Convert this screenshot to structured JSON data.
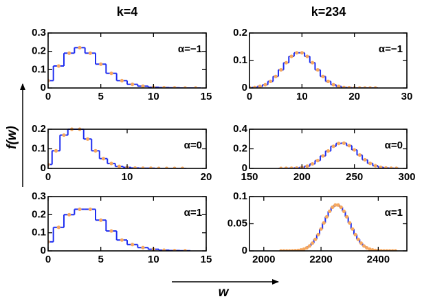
{
  "column_titles": [
    "k=4",
    "k=234"
  ],
  "ylabel": "f(w)",
  "xlabel": "w",
  "chart_data": [
    {
      "type": "step",
      "annotation": "α=−1",
      "xlim": [
        0,
        15
      ],
      "xticks": [
        0,
        5,
        10,
        15
      ],
      "ylim": [
        0,
        0.3
      ],
      "yticks": [
        0,
        0.1,
        0.2,
        0.3
      ],
      "x": [
        0,
        1,
        2,
        3,
        4,
        5,
        6,
        7,
        8,
        9,
        10,
        11,
        12,
        13,
        14
      ],
      "series": [
        {
          "style": "step",
          "color": "#1f2ef0",
          "values": [
            0.04,
            0.12,
            0.19,
            0.22,
            0.19,
            0.13,
            0.08,
            0.04,
            0.02,
            0.01,
            0.004,
            0.002,
            0.001,
            0,
            0
          ]
        },
        {
          "style": "dots",
          "color": "#f5a860",
          "values": [
            0.04,
            0.12,
            0.19,
            0.22,
            0.19,
            0.13,
            0.08,
            0.04,
            0.02,
            0.01,
            0.004,
            0.002,
            0.001,
            0,
            0
          ]
        }
      ]
    },
    {
      "type": "step",
      "annotation": "α=−1",
      "xlim": [
        0,
        30
      ],
      "xticks": [
        0,
        10,
        20,
        30
      ],
      "ylim": [
        0,
        0.2
      ],
      "yticks": [
        0,
        0.1,
        0.2
      ],
      "x": [
        0,
        1,
        2,
        3,
        4,
        5,
        6,
        7,
        8,
        9,
        10,
        11,
        12,
        13,
        14,
        15,
        16,
        17,
        18,
        19,
        20,
        21,
        22,
        23,
        24
      ],
      "series": [
        {
          "style": "step",
          "color": "#1f2ef0",
          "values": [
            0.001,
            0.002,
            0.006,
            0.012,
            0.024,
            0.042,
            0.066,
            0.092,
            0.115,
            0.128,
            0.128,
            0.115,
            0.092,
            0.066,
            0.042,
            0.024,
            0.012,
            0.006,
            0.002,
            0.001,
            0,
            0,
            0,
            0,
            0
          ]
        },
        {
          "style": "dots",
          "color": "#f5a860",
          "values": [
            0.001,
            0.002,
            0.006,
            0.012,
            0.024,
            0.042,
            0.066,
            0.092,
            0.115,
            0.128,
            0.128,
            0.115,
            0.092,
            0.066,
            0.042,
            0.024,
            0.012,
            0.006,
            0.002,
            0.001,
            0,
            0,
            0,
            0,
            0
          ]
        }
      ]
    },
    {
      "type": "step",
      "annotation": "α=0",
      "xlim": [
        0,
        20
      ],
      "xticks": [
        0,
        10,
        20
      ],
      "ylim": [
        0,
        0.2
      ],
      "yticks": [
        0,
        0.1,
        0.2
      ],
      "x": [
        0,
        1,
        2,
        3,
        4,
        5,
        6,
        7,
        8,
        9,
        10,
        11,
        12,
        13,
        14,
        15,
        16,
        17
      ],
      "series": [
        {
          "style": "step",
          "color": "#1f2ef0",
          "values": [
            0.02,
            0.09,
            0.17,
            0.2,
            0.2,
            0.15,
            0.09,
            0.05,
            0.025,
            0.01,
            0.005,
            0.002,
            0.001,
            0.001,
            0,
            0,
            0,
            0
          ]
        },
        {
          "style": "dots",
          "color": "#f5a860",
          "values": [
            0.02,
            0.09,
            0.17,
            0.2,
            0.2,
            0.15,
            0.09,
            0.05,
            0.025,
            0.01,
            0.005,
            0.002,
            0.001,
            0.001,
            0,
            0,
            0,
            0
          ]
        }
      ]
    },
    {
      "type": "step",
      "annotation": "α=0",
      "xlim": [
        150,
        300
      ],
      "xticks": [
        150,
        200,
        250,
        300
      ],
      "ylim": [
        0,
        0.4
      ],
      "yticks": [
        0,
        0.2,
        0.4
      ],
      "x": [
        180,
        185,
        190,
        195,
        200,
        205,
        210,
        215,
        220,
        225,
        230,
        235,
        240,
        245,
        250,
        255,
        260,
        265,
        270,
        275,
        280,
        285,
        290
      ],
      "series": [
        {
          "style": "step",
          "color": "#1f2ef0",
          "values": [
            0,
            0.001,
            0.002,
            0.004,
            0.01,
            0.023,
            0.046,
            0.08,
            0.127,
            0.178,
            0.226,
            0.255,
            0.258,
            0.233,
            0.189,
            0.137,
            0.088,
            0.051,
            0.027,
            0.012,
            0.005,
            0.002,
            0.001
          ]
        },
        {
          "style": "dots",
          "color": "#f5a860",
          "values": [
            0,
            0.001,
            0.002,
            0.004,
            0.01,
            0.023,
            0.046,
            0.08,
            0.127,
            0.178,
            0.226,
            0.255,
            0.258,
            0.233,
            0.189,
            0.137,
            0.088,
            0.051,
            0.027,
            0.012,
            0.005,
            0.002,
            0.001
          ]
        }
      ]
    },
    {
      "type": "step",
      "annotation": "α=1",
      "xlim": [
        0,
        15
      ],
      "xticks": [
        0,
        5,
        10,
        15
      ],
      "ylim": [
        0,
        0.3
      ],
      "yticks": [
        0,
        0.1,
        0.2,
        0.3
      ],
      "x": [
        0,
        1,
        2,
        3,
        4,
        5,
        6,
        7,
        8,
        9,
        10,
        11,
        12,
        13
      ],
      "series": [
        {
          "style": "step",
          "color": "#1f2ef0",
          "values": [
            0.05,
            0.13,
            0.2,
            0.23,
            0.23,
            0.17,
            0.11,
            0.06,
            0.035,
            0.018,
            0.009,
            0.004,
            0.002,
            0.001
          ]
        },
        {
          "style": "dots",
          "color": "#f5a860",
          "values": [
            0.05,
            0.13,
            0.2,
            0.23,
            0.23,
            0.17,
            0.11,
            0.06,
            0.035,
            0.018,
            0.009,
            0.004,
            0.002,
            0.001
          ]
        }
      ]
    },
    {
      "type": "step",
      "annotation": "α=1",
      "xlim": [
        1950,
        2500
      ],
      "xticks": [
        2000,
        2200,
        2400
      ],
      "ylim": [
        0,
        0.1
      ],
      "yticks": [
        0,
        0.05,
        0.1
      ],
      "x": [
        2060,
        2070,
        2080,
        2090,
        2100,
        2110,
        2120,
        2130,
        2140,
        2150,
        2160,
        2170,
        2180,
        2190,
        2200,
        2210,
        2220,
        2230,
        2240,
        2250,
        2260,
        2270,
        2280,
        2290,
        2300,
        2310,
        2320,
        2330,
        2340,
        2350,
        2360,
        2370,
        2380,
        2390,
        2400,
        2410,
        2420,
        2430,
        2440,
        2450,
        2460
      ],
      "series": [
        {
          "style": "step",
          "color": "#1f2ef0",
          "values": [
            0,
            0,
            0,
            0.0001,
            0.0002,
            0.0005,
            0.0009,
            0.0018,
            0.0032,
            0.0056,
            0.0091,
            0.0143,
            0.0212,
            0.03,
            0.0403,
            0.0516,
            0.0628,
            0.0729,
            0.0804,
            0.0845,
            0.0845,
            0.0804,
            0.0729,
            0.0628,
            0.0516,
            0.0403,
            0.03,
            0.0212,
            0.0143,
            0.0091,
            0.0056,
            0.0032,
            0.0018,
            0.0009,
            0.0005,
            0.0002,
            0.0001,
            0,
            0,
            0,
            0
          ]
        },
        {
          "style": "dots",
          "color": "#f5a860",
          "values": [
            0,
            0,
            0,
            0.0001,
            0.0002,
            0.0005,
            0.0009,
            0.0018,
            0.0032,
            0.0056,
            0.0091,
            0.0143,
            0.0212,
            0.03,
            0.0403,
            0.0516,
            0.0628,
            0.0729,
            0.0804,
            0.0845,
            0.0845,
            0.0804,
            0.0729,
            0.0628,
            0.0516,
            0.0403,
            0.03,
            0.0212,
            0.0143,
            0.0091,
            0.0056,
            0.0032,
            0.0018,
            0.0009,
            0.0005,
            0.0002,
            0.0001,
            0,
            0,
            0,
            0
          ]
        }
      ]
    }
  ]
}
